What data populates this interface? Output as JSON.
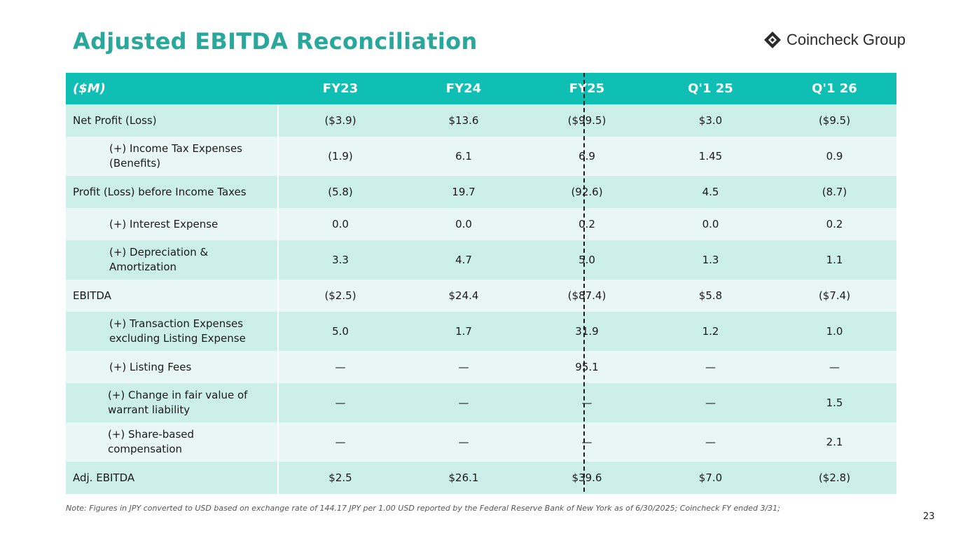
{
  "slide": {
    "title": "Adjusted EBITDA Reconciliation",
    "logo_text": "Coincheck Group",
    "note": "Note: Figures in JPY converted to USD based on exchange rate of 144.17 JPY per 1.00 USD reported by the Federal Reserve Bank of New York as of 6/30/2025; Coincheck FY ended 3/31;",
    "page_number": "23"
  },
  "colors": {
    "accent": "#2aa79b",
    "header_bg": "#0fbfb3",
    "row_dark": "#cdefea",
    "row_light": "#e8f7f5"
  },
  "table": {
    "headers": [
      "($M)",
      "FY23",
      "FY24",
      "FY25",
      "Q'1 25",
      "Q'1 26"
    ],
    "rows": [
      {
        "label": "Net Profit (Loss)",
        "values": [
          "($3.9)",
          "$13.6",
          "($99.5)",
          "$3.0",
          "($9.5)"
        ]
      },
      {
        "label": "(+) Income Tax Expenses (Benefits)",
        "values": [
          "(1.9)",
          "6.1",
          "6.9",
          "1.45",
          "0.9"
        ]
      },
      {
        "label": "Profit (Loss) before Income Taxes",
        "values": [
          "(5.8)",
          "19.7",
          "(92.6)",
          "4.5",
          "(8.7)"
        ]
      },
      {
        "label": "(+) Interest Expense",
        "values": [
          "0.0",
          "0.0",
          "0.2",
          "0.0",
          "0.2"
        ]
      },
      {
        "label": "(+) Depreciation & Amortization",
        "values": [
          "3.3",
          "4.7",
          "5.0",
          "1.3",
          "1.1"
        ]
      },
      {
        "label": "EBITDA",
        "values": [
          "($2.5)",
          "$24.4",
          "($87.4)",
          "$5.8",
          "($7.4)"
        ]
      },
      {
        "label": "(+) Transaction Expenses excluding Listing Expense",
        "values": [
          "5.0",
          "1.7",
          "31.9",
          "1.2",
          "1.0"
        ]
      },
      {
        "label": "(+) Listing Fees",
        "values": [
          "—",
          "—",
          "95.1",
          "—",
          "—"
        ]
      },
      {
        "label": "(+) Change in fair value of warrant liability",
        "values": [
          "—",
          "—",
          "—",
          "—",
          "1.5"
        ]
      },
      {
        "label": "(+) Share-based compensation",
        "values": [
          "—",
          "—",
          "—",
          "—",
          "2.1"
        ]
      },
      {
        "label": "Adj. EBITDA",
        "values": [
          "$2.5",
          "$26.1",
          "$39.6",
          "$7.0",
          "($2.8)"
        ]
      }
    ]
  }
}
